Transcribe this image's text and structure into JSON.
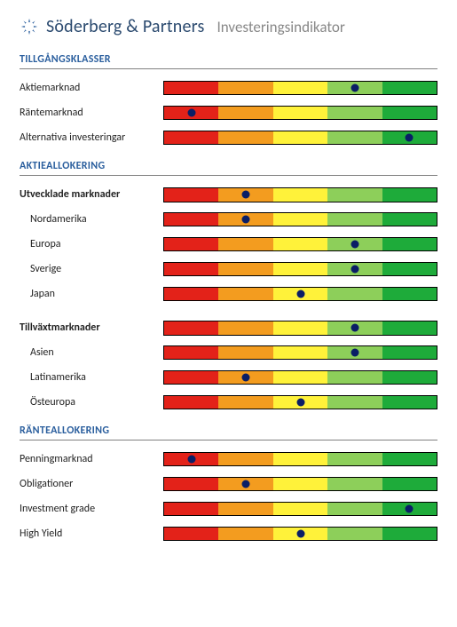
{
  "header": {
    "company": "Söderberg & Partners",
    "subtitle": "Investeringsindikator",
    "logo_color": "#2b5f9e"
  },
  "style": {
    "segment_colors": [
      "#e32219",
      "#f39c1f",
      "#fff23a",
      "#8dcf5a",
      "#1eab3a"
    ],
    "dot_color": "#0a1e66",
    "section_title_color": "#2b5f9e",
    "divider_color": "#808080",
    "row_label_fontsize": 12,
    "section_title_fontsize": 12
  },
  "sections": [
    {
      "title": "TILLGÅNGSKLASSER",
      "groups": [
        {
          "emphasized": false,
          "items": [
            {
              "label": "Aktiemarknad",
              "indent": false,
              "dot_segment": 4
            },
            {
              "label": "Räntemarknad",
              "indent": false,
              "dot_segment": 1
            },
            {
              "label": "Alternativa investeringar",
              "indent": false,
              "dot_segment": 5
            }
          ]
        }
      ]
    },
    {
      "title": "AKTIEALLOKERING",
      "groups": [
        {
          "header": {
            "label": "Utvecklade marknader",
            "dot_segment": 2
          },
          "emphasized": true,
          "items": [
            {
              "label": "Nordamerika",
              "indent": true,
              "dot_segment": 2
            },
            {
              "label": "Europa",
              "indent": true,
              "dot_segment": 4
            },
            {
              "label": "Sverige",
              "indent": true,
              "dot_segment": 4
            },
            {
              "label": "Japan",
              "indent": true,
              "dot_segment": 3
            }
          ]
        },
        {
          "header": {
            "label": "Tillväxtmarknader",
            "dot_segment": 4
          },
          "emphasized": true,
          "items": [
            {
              "label": "Asien",
              "indent": true,
              "dot_segment": 4
            },
            {
              "label": "Latinamerika",
              "indent": true,
              "dot_segment": 2
            },
            {
              "label": "Östeuropa",
              "indent": true,
              "dot_segment": 3
            }
          ]
        }
      ]
    },
    {
      "title": "RÄNTEALLOKERING",
      "groups": [
        {
          "emphasized": false,
          "items": [
            {
              "label": "Penningmarknad",
              "indent": false,
              "dot_segment": 1
            },
            {
              "label": "Obligationer",
              "indent": false,
              "dot_segment": 2
            },
            {
              "label": "Investment grade",
              "indent": false,
              "dot_segment": 5
            },
            {
              "label": "High Yield",
              "indent": false,
              "dot_segment": 3
            }
          ]
        }
      ]
    }
  ]
}
